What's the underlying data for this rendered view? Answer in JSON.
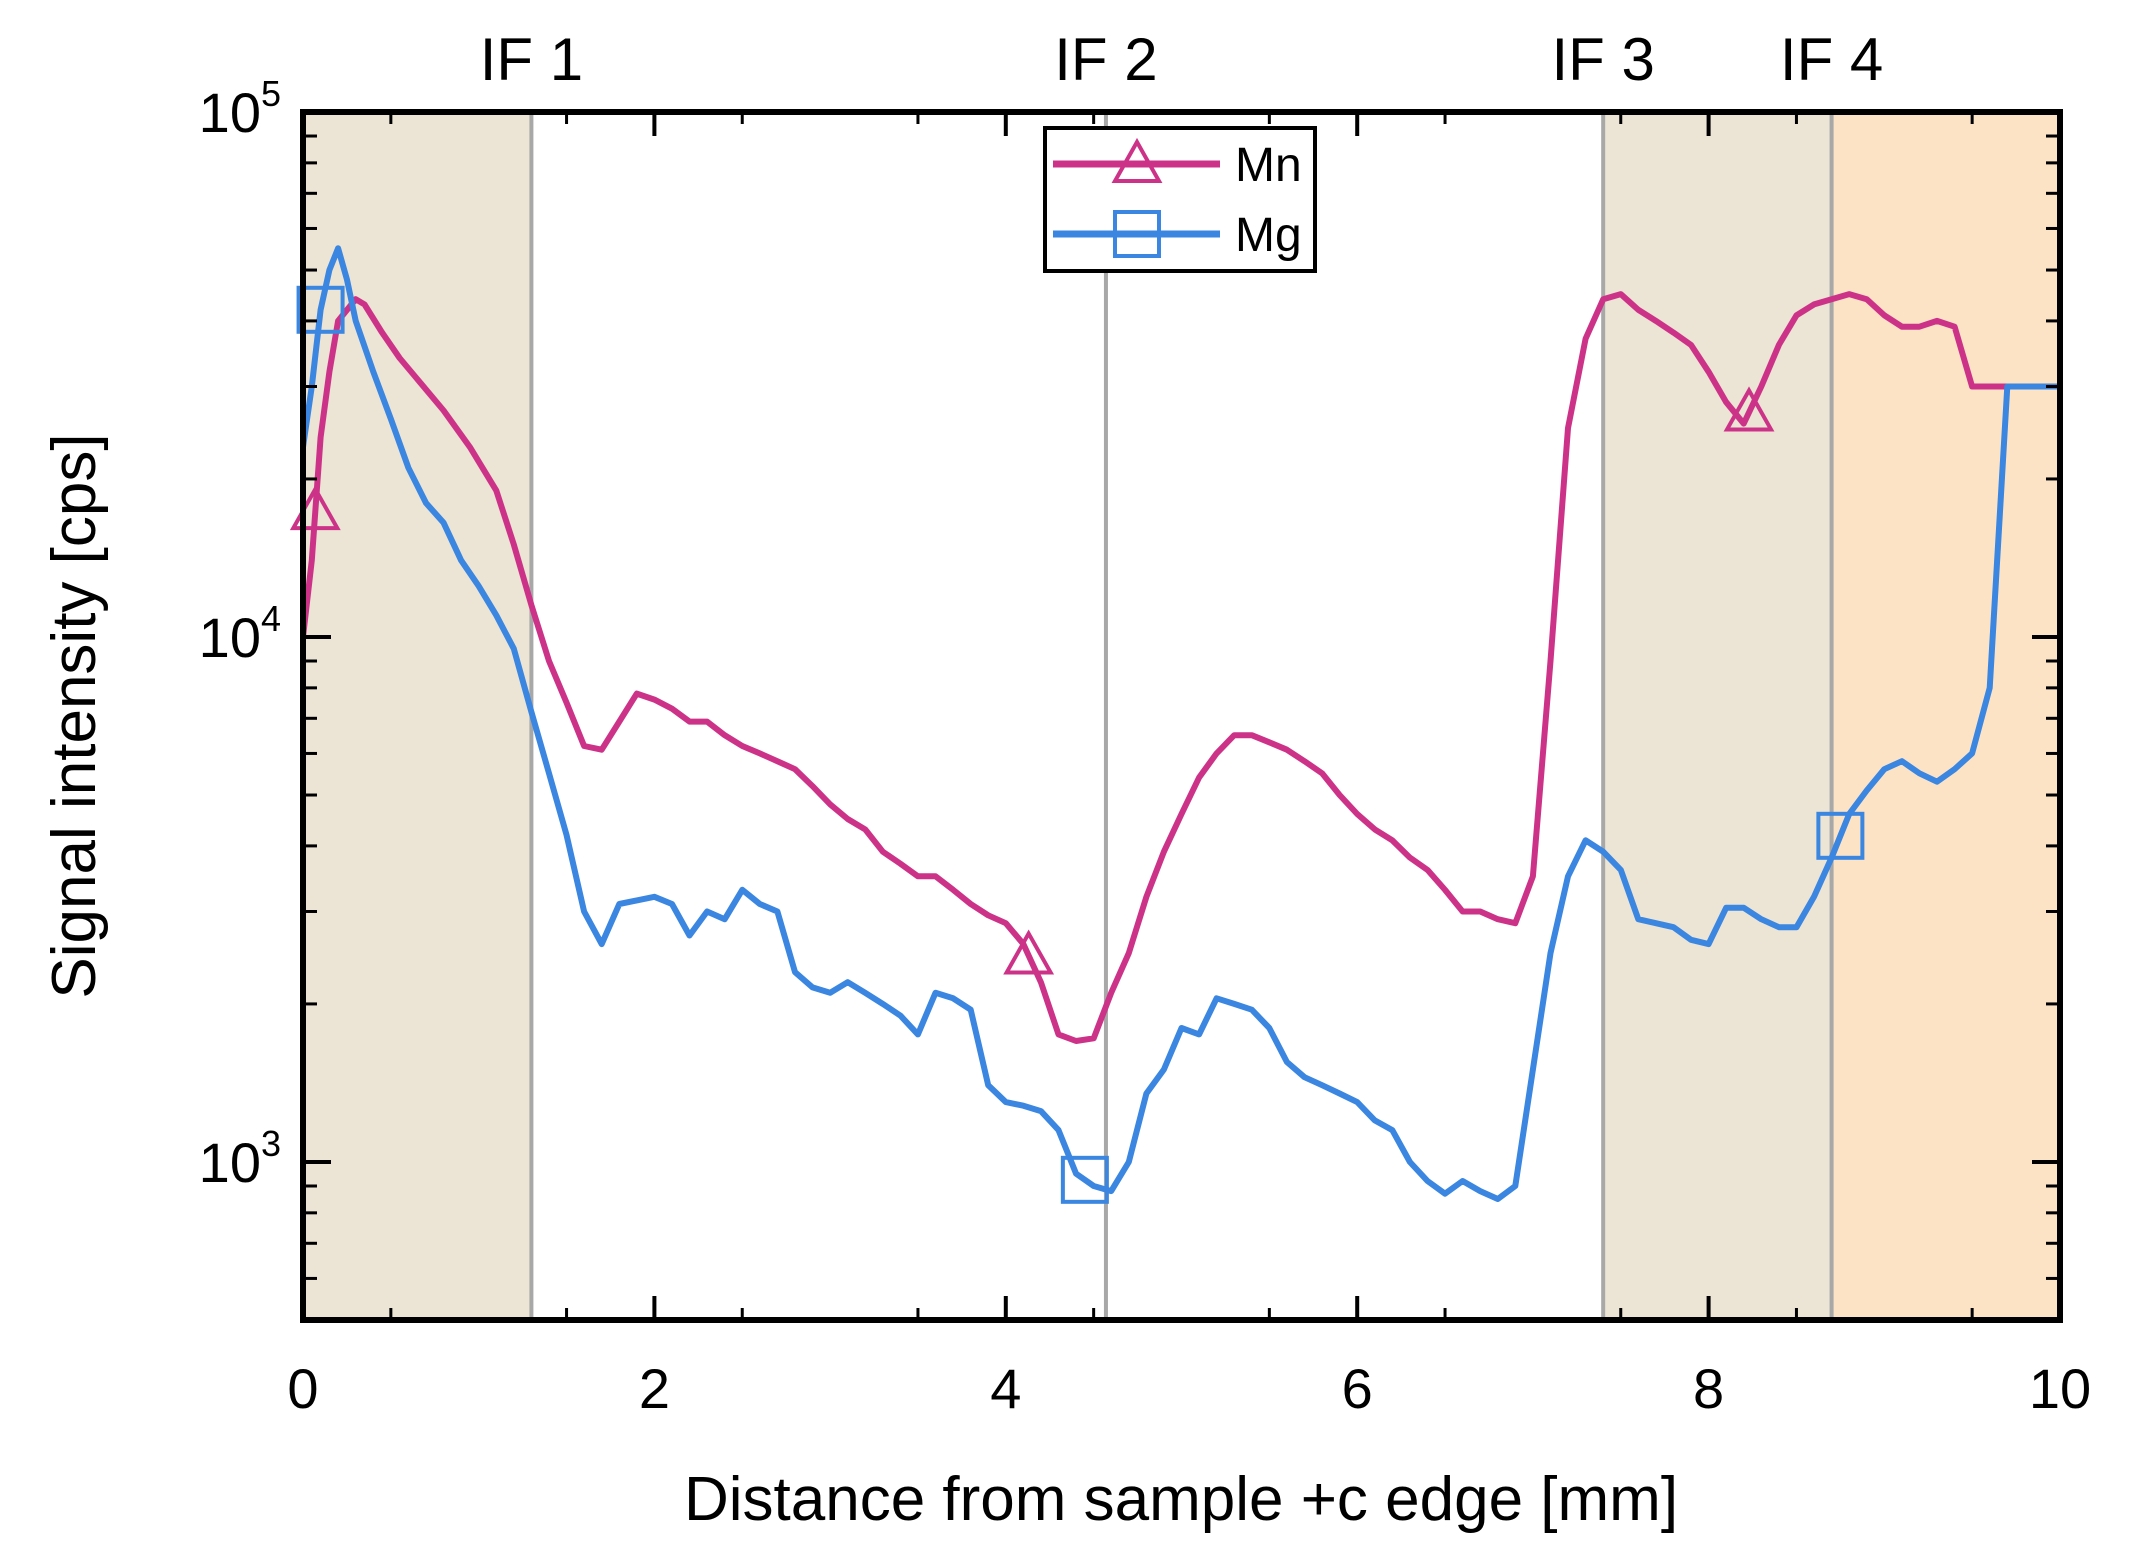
{
  "chart_data": {
    "type": "line",
    "title": "",
    "xlabel": "Distance from sample +c edge [mm]",
    "ylabel": "Signal intensity [cps]",
    "xlim": [
      0,
      10
    ],
    "ylim": [
      500,
      100000
    ],
    "yscale": "log",
    "x_ticks": [
      0,
      2,
      4,
      6,
      8,
      10
    ],
    "y_ticks": [
      {
        "value": 1000,
        "base": "10",
        "exp": "3"
      },
      {
        "value": 10000,
        "base": "10",
        "exp": "4"
      },
      {
        "value": 100000,
        "base": "10",
        "exp": "5"
      }
    ],
    "regions": [
      {
        "x0": 0,
        "x1": 1.3,
        "color": "#ece4d4"
      },
      {
        "x0": 7.4,
        "x1": 8.7,
        "color": "#ece4d4"
      },
      {
        "x0": 8.7,
        "x1": 10,
        "color": "#fde3c6"
      }
    ],
    "interfaces": [
      {
        "label": "IF 1",
        "x": 1.3
      },
      {
        "label": "IF 2",
        "x": 4.57
      },
      {
        "label": "IF 3",
        "x": 7.4
      },
      {
        "label": "IF 4",
        "x": 8.7
      }
    ],
    "legend_position": "top-center",
    "series": [
      {
        "name": "Mn",
        "color": "#cc3388",
        "marker": "triangle",
        "marker_x": [
          0.07,
          4.13,
          8.23
        ],
        "x": [
          0.0,
          0.05,
          0.1,
          0.15,
          0.2,
          0.3,
          0.35,
          0.45,
          0.55,
          0.65,
          0.8,
          0.95,
          1.1,
          1.2,
          1.3,
          1.4,
          1.5,
          1.6,
          1.7,
          1.8,
          1.9,
          2.0,
          2.1,
          2.2,
          2.3,
          2.4,
          2.5,
          2.6,
          2.7,
          2.8,
          2.9,
          3.0,
          3.1,
          3.2,
          3.3,
          3.4,
          3.5,
          3.6,
          3.7,
          3.8,
          3.9,
          4.0,
          4.1,
          4.2,
          4.3,
          4.4,
          4.5,
          4.6,
          4.7,
          4.8,
          4.9,
          5.0,
          5.1,
          5.2,
          5.3,
          5.4,
          5.5,
          5.6,
          5.7,
          5.8,
          5.9,
          6.0,
          6.1,
          6.2,
          6.3,
          6.4,
          6.5,
          6.6,
          6.7,
          6.8,
          6.9,
          7.0,
          7.1,
          7.2,
          7.3,
          7.4,
          7.5,
          7.6,
          7.7,
          7.8,
          7.9,
          8.0,
          8.1,
          8.2,
          8.3,
          8.4,
          8.5,
          8.6,
          8.7,
          8.8,
          8.9,
          9.0,
          9.1,
          9.2,
          9.3,
          9.4,
          9.5,
          9.6,
          9.7,
          9.8,
          9.9,
          10.0
        ],
        "y": [
          10000,
          14000,
          24000,
          32000,
          40000,
          44000,
          43000,
          38000,
          34000,
          31000,
          27000,
          23000,
          19000,
          15000,
          11500,
          9000,
          7500,
          6200,
          6100,
          6900,
          7800,
          7600,
          7300,
          6900,
          6900,
          6500,
          6200,
          6000,
          5800,
          5600,
          5200,
          4800,
          4500,
          4300,
          3900,
          3700,
          3500,
          3500,
          3300,
          3100,
          2950,
          2850,
          2600,
          2200,
          1750,
          1700,
          1720,
          2100,
          2500,
          3200,
          3900,
          4600,
          5400,
          6000,
          6500,
          6500,
          6300,
          6100,
          5800,
          5500,
          5000,
          4600,
          4300,
          4100,
          3800,
          3600,
          3300,
          3000,
          3000,
          2900,
          2850,
          3500,
          9000,
          25000,
          37000,
          44000,
          45000,
          42000,
          40000,
          38000,
          36000,
          32000,
          28000,
          25500,
          30000,
          36000,
          41000,
          43000,
          44000,
          45000,
          44000,
          41000,
          39000,
          39000,
          40000,
          39000,
          30000,
          30000,
          30000,
          30000,
          30000,
          30000
        ],
        "x_note": "",
        "y_note": ""
      },
      {
        "name": "Mg",
        "color": "#3a86e0",
        "marker": "square",
        "marker_x": [
          0.1,
          4.45,
          8.75
        ],
        "x": [
          0.0,
          0.05,
          0.1,
          0.15,
          0.2,
          0.25,
          0.3,
          0.4,
          0.5,
          0.6,
          0.7,
          0.8,
          0.9,
          1.0,
          1.1,
          1.2,
          1.3,
          1.4,
          1.5,
          1.6,
          1.7,
          1.8,
          1.9,
          2.0,
          2.1,
          2.2,
          2.3,
          2.4,
          2.5,
          2.6,
          2.7,
          2.8,
          2.9,
          3.0,
          3.1,
          3.2,
          3.3,
          3.4,
          3.5,
          3.6,
          3.7,
          3.8,
          3.9,
          4.0,
          4.1,
          4.2,
          4.3,
          4.4,
          4.5,
          4.6,
          4.7,
          4.8,
          4.9,
          5.0,
          5.1,
          5.2,
          5.3,
          5.4,
          5.5,
          5.6,
          5.7,
          5.8,
          5.9,
          6.0,
          6.1,
          6.2,
          6.3,
          6.4,
          6.5,
          6.6,
          6.7,
          6.8,
          6.9,
          7.0,
          7.1,
          7.2,
          7.3,
          7.4,
          7.5,
          7.6,
          7.7,
          7.8,
          7.9,
          8.0,
          8.1,
          8.2,
          8.3,
          8.4,
          8.5,
          8.6,
          8.7,
          8.8,
          8.9,
          9.0,
          9.1,
          9.2,
          9.3,
          9.4,
          9.5,
          9.6,
          9.7,
          9.8,
          9.9,
          10.0
        ],
        "y": [
          23000,
          30000,
          42000,
          50000,
          55000,
          48000,
          40000,
          32000,
          26000,
          21000,
          18000,
          16500,
          14000,
          12500,
          11000,
          9500,
          7200,
          5500,
          4200,
          3000,
          2600,
          3100,
          3150,
          3200,
          3100,
          2700,
          3000,
          2900,
          3300,
          3100,
          3000,
          2300,
          2150,
          2100,
          2200,
          2100,
          2000,
          1900,
          1750,
          2100,
          2050,
          1950,
          1400,
          1300,
          1280,
          1250,
          1150,
          950,
          900,
          880,
          1000,
          1350,
          1500,
          1800,
          1750,
          2050,
          2000,
          1950,
          1800,
          1550,
          1450,
          1400,
          1350,
          1300,
          1200,
          1150,
          1000,
          920,
          870,
          920,
          880,
          850,
          900,
          1500,
          2500,
          3500,
          4100,
          3900,
          3600,
          2900,
          2850,
          2800,
          2650,
          2600,
          3050,
          3050,
          2900,
          2800,
          2800,
          3200,
          3800,
          4600,
          5100,
          5600,
          5800,
          5500,
          5300,
          5600,
          6000,
          8000,
          30000,
          30000,
          30000,
          30000
        ],
        "x_note": "",
        "y_note": ""
      }
    ]
  }
}
